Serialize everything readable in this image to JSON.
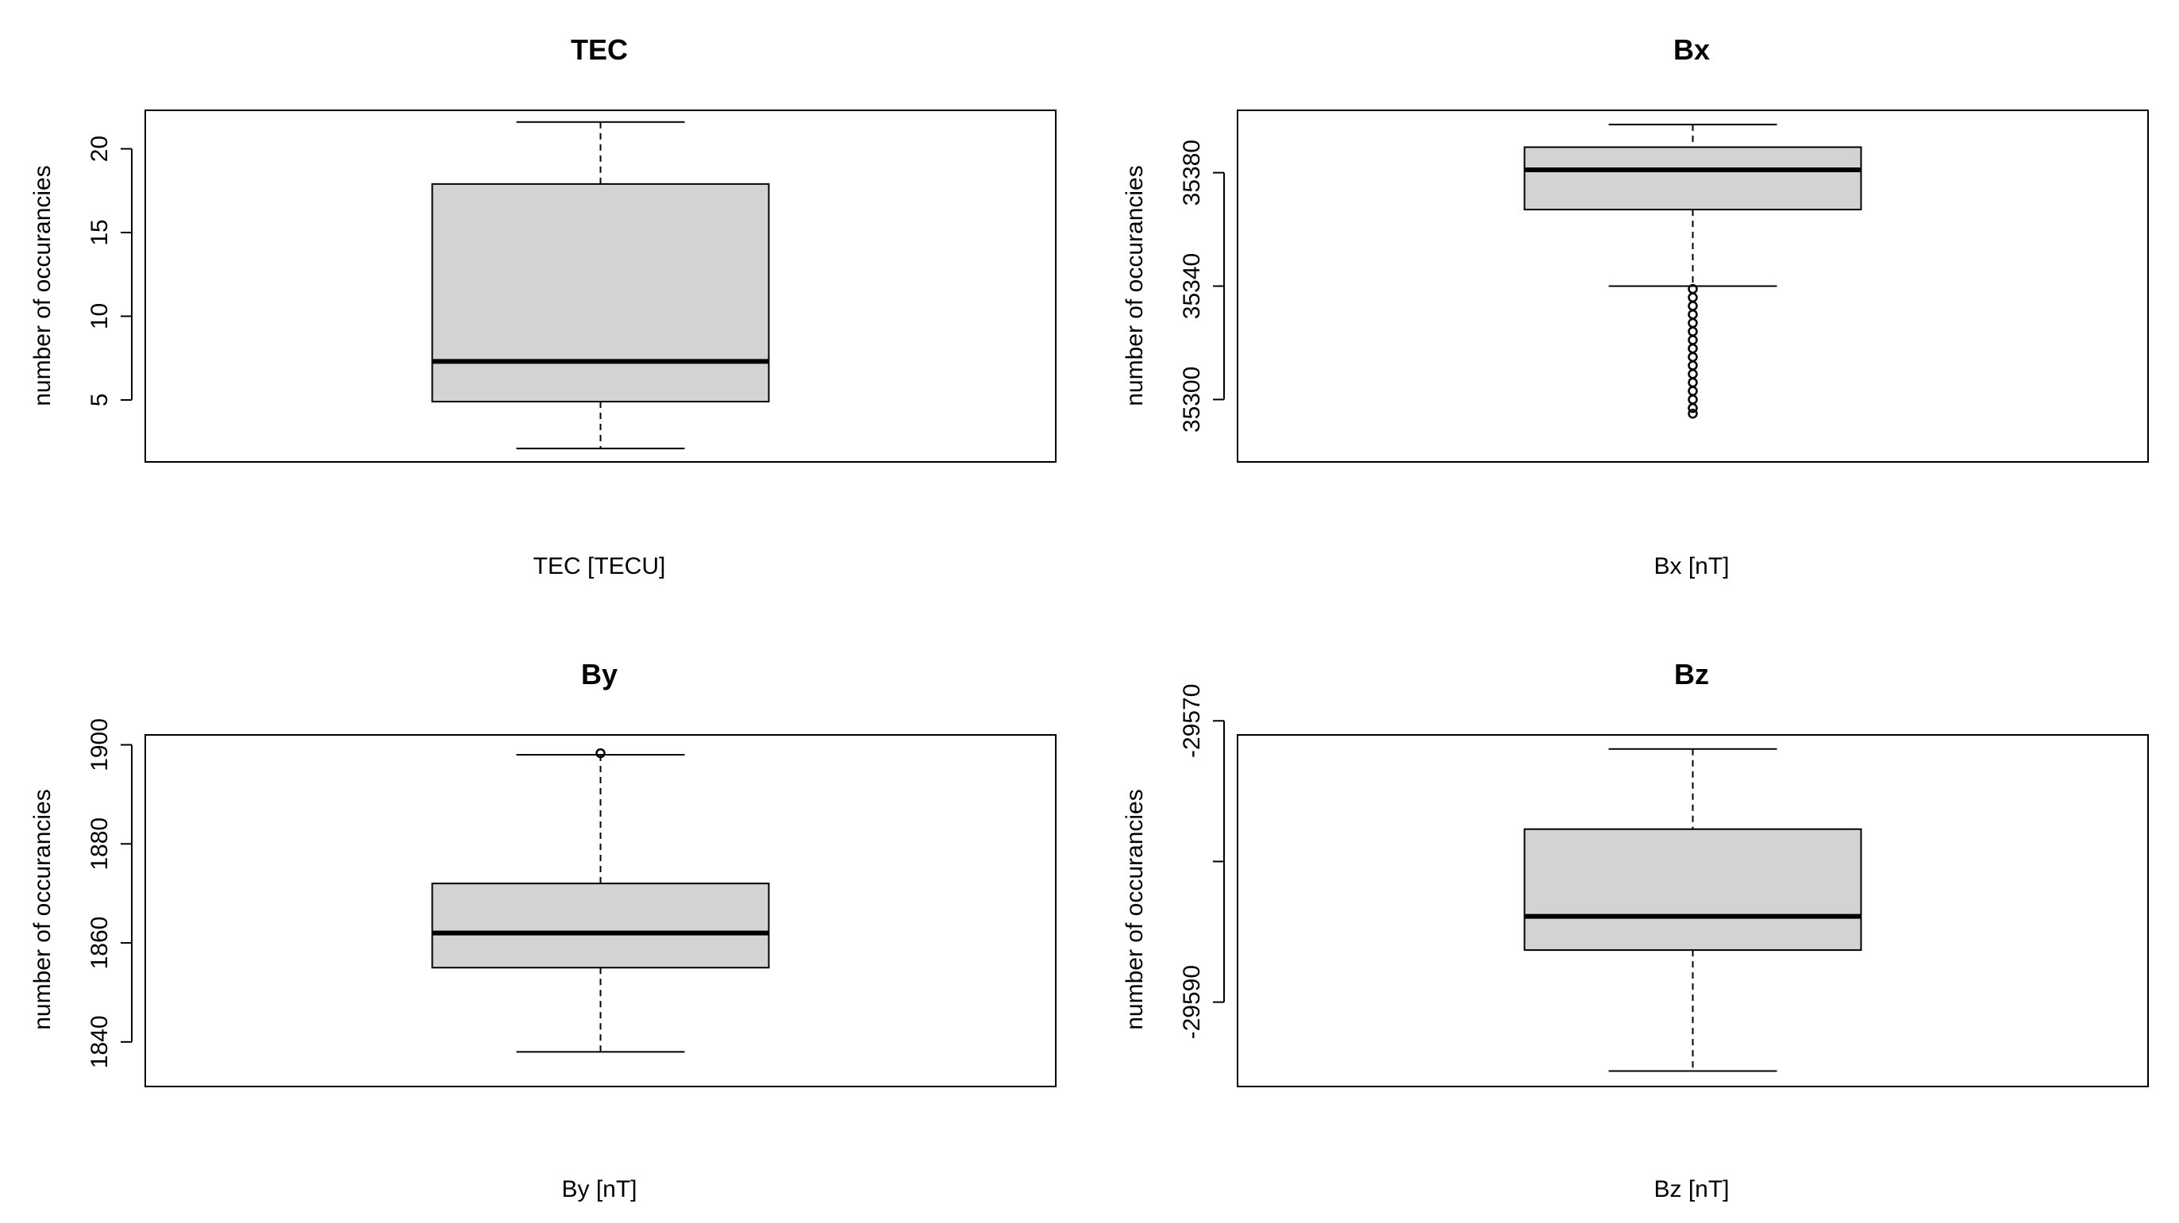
{
  "chart_data": [
    {
      "type": "boxplot",
      "title": "TEC",
      "xlabel": "TEC [TECU]",
      "ylabel": "number of occurancies",
      "ylim": [
        1.3,
        22.3
      ],
      "yticks": [
        5,
        10,
        15,
        20
      ],
      "ytick_labels": [
        "5",
        "10",
        "15",
        "20"
      ],
      "box": {
        "whisker_low": 2.1,
        "q1": 4.9,
        "median": 7.3,
        "q3": 17.9,
        "whisker_high": 21.6
      },
      "outliers": []
    },
    {
      "type": "boxplot",
      "title": "Bx",
      "xlabel": "Bx [nT]",
      "ylabel": "number of occurancies",
      "ylim": [
        35278,
        35402
      ],
      "yticks": [
        35300,
        35340,
        35380
      ],
      "ytick_labels": [
        "35300",
        "35340",
        "35380"
      ],
      "box": {
        "whisker_low": 35340,
        "q1": 35367,
        "median": 35381,
        "q3": 35389,
        "whisker_high": 35397
      },
      "outliers": [
        35339,
        35336,
        35333,
        35330,
        35327,
        35324,
        35321,
        35318,
        35315,
        35312,
        35309,
        35306,
        35303,
        35300,
        35297,
        35295
      ]
    },
    {
      "type": "boxplot",
      "title": "By",
      "xlabel": "By [nT]",
      "ylabel": "number of occurancies",
      "ylim": [
        1831,
        1902
      ],
      "yticks": [
        1840,
        1860,
        1880,
        1900
      ],
      "ytick_labels": [
        "1840",
        "1860",
        "1880",
        "1900"
      ],
      "box": {
        "whisker_low": 1838,
        "q1": 1855,
        "median": 1862,
        "q3": 1872,
        "whisker_high": 1898
      },
      "outliers": [
        1898.3
      ]
    },
    {
      "type": "boxplot",
      "title": "Bz",
      "xlabel": "Bz [nT]",
      "ylabel": "number of occurancies",
      "ylim": [
        -29596,
        -29571
      ],
      "yticks": [
        -29590,
        -29580,
        -29570
      ],
      "ytick_labels": [
        "-29590",
        "",
        "-29570"
      ],
      "box": {
        "whisker_low": -29594.9,
        "q1": -29586.3,
        "median": -29583.9,
        "q3": -29577.7,
        "whisker_high": -29572.0
      },
      "outliers": []
    }
  ]
}
